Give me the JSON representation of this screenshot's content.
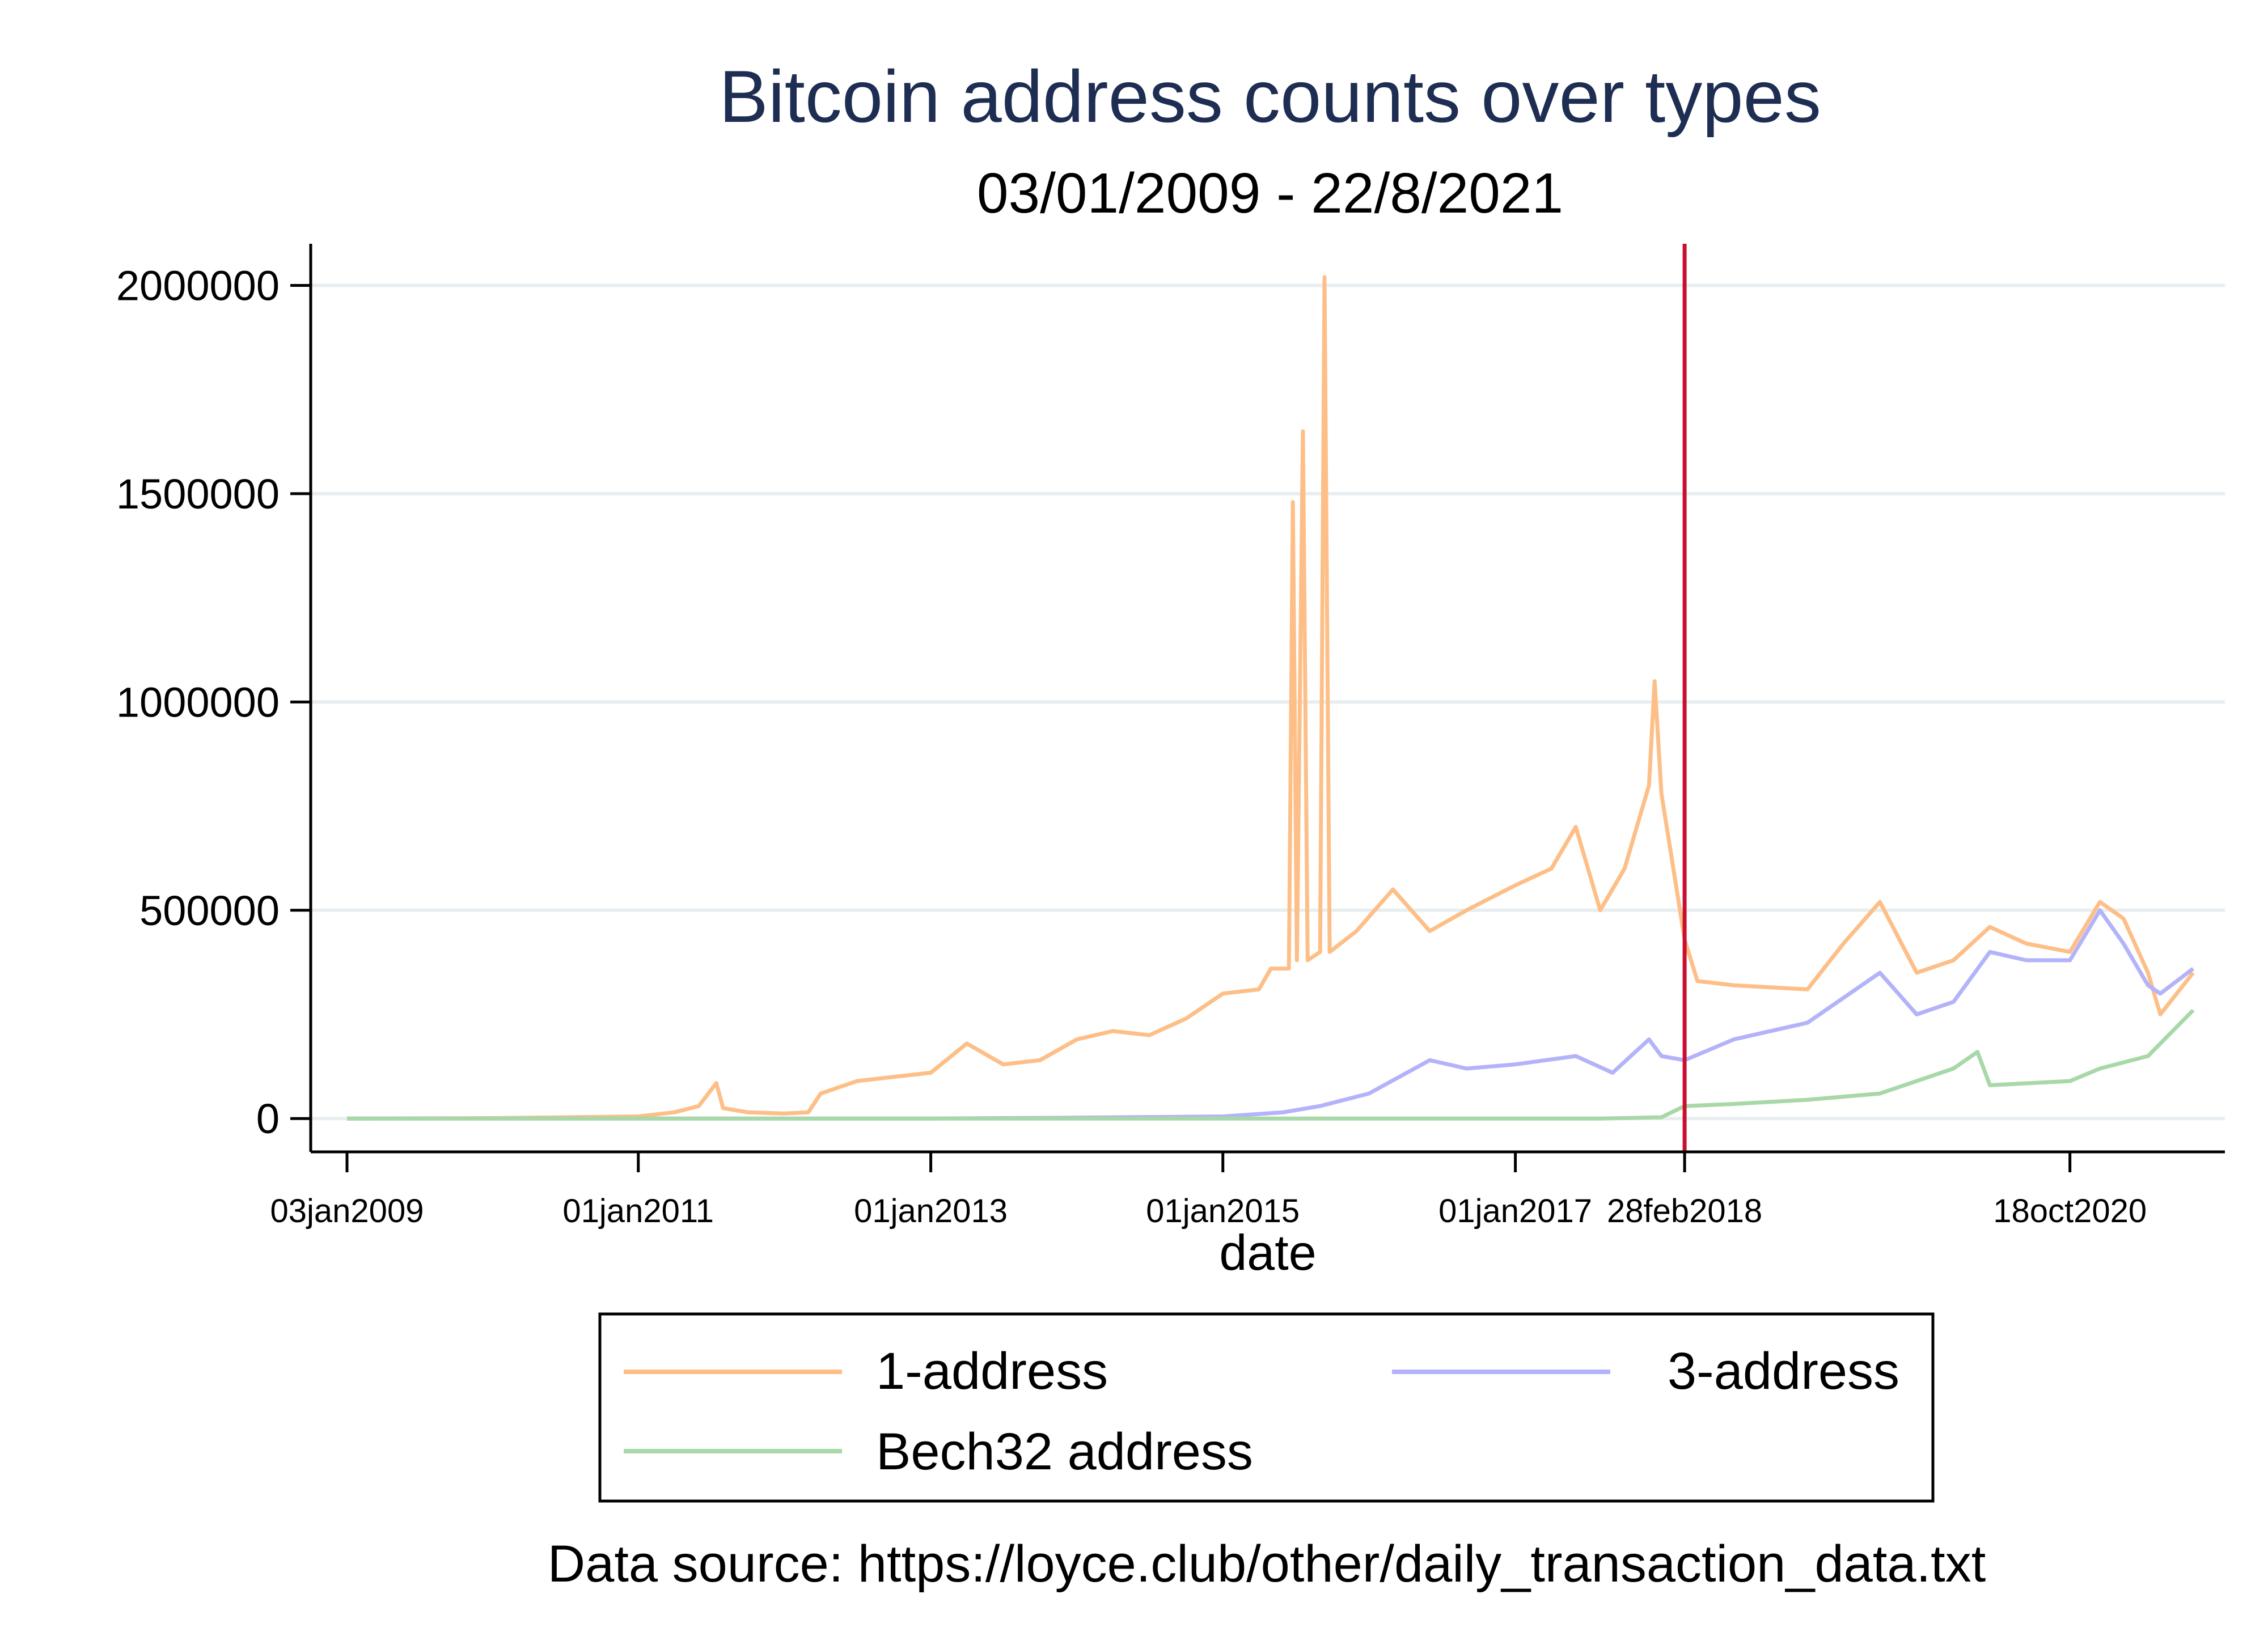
{
  "chart_data": {
    "type": "line",
    "title": "Bitcoin address counts over types",
    "subtitle": "03/01/2009 - 22/8/2021",
    "xlabel": "date",
    "ylabel": "",
    "xlim": [
      "2009-01-03",
      "2021-08-22"
    ],
    "ylim": [
      -80000,
      2100000
    ],
    "y_ticks": [
      {
        "value": 0,
        "label": "0"
      },
      {
        "value": 500000,
        "label": "500000"
      },
      {
        "value": 1000000,
        "label": "1000000"
      },
      {
        "value": 1500000,
        "label": "1500000"
      },
      {
        "value": 2000000,
        "label": "2000000"
      }
    ],
    "x_ticks": [
      {
        "value": "2009-01-03",
        "label": "03jan2009"
      },
      {
        "value": "2011-01-01",
        "label": "01jan2011"
      },
      {
        "value": "2013-01-01",
        "label": "01jan2013"
      },
      {
        "value": "2015-01-01",
        "label": "01jan2015"
      },
      {
        "value": "2017-01-01",
        "label": "01jan2017"
      },
      {
        "value": "2018-02-28",
        "label": "28feb2018"
      },
      {
        "value": "2020-10-18",
        "label": "18oct2020"
      }
    ],
    "grid": true,
    "reference_line": {
      "x": "2018-02-28",
      "color": "#c8102e"
    },
    "legend": {
      "position": "bottom",
      "columns": 2
    },
    "series": [
      {
        "name": "1-address",
        "color": "#fdbf87",
        "points": [
          [
            "2009-01-03",
            0
          ],
          [
            "2010-01-01",
            1000
          ],
          [
            "2010-07-01",
            3000
          ],
          [
            "2011-01-01",
            5000
          ],
          [
            "2011-04-01",
            15000
          ],
          [
            "2011-06-01",
            30000
          ],
          [
            "2011-07-15",
            85000
          ],
          [
            "2011-08-01",
            25000
          ],
          [
            "2011-10-01",
            15000
          ],
          [
            "2012-01-01",
            12000
          ],
          [
            "2012-03-01",
            15000
          ],
          [
            "2012-04-01",
            60000
          ],
          [
            "2012-07-01",
            90000
          ],
          [
            "2012-10-01",
            100000
          ],
          [
            "2013-01-01",
            110000
          ],
          [
            "2013-04-01",
            180000
          ],
          [
            "2013-07-01",
            130000
          ],
          [
            "2013-10-01",
            140000
          ],
          [
            "2014-01-01",
            190000
          ],
          [
            "2014-04-01",
            210000
          ],
          [
            "2014-07-01",
            200000
          ],
          [
            "2014-10-01",
            240000
          ],
          [
            "2015-01-01",
            300000
          ],
          [
            "2015-04-01",
            310000
          ],
          [
            "2015-05-01",
            360000
          ],
          [
            "2015-06-15",
            360000
          ],
          [
            "2015-06-25",
            1480000
          ],
          [
            "2015-07-05",
            380000
          ],
          [
            "2015-07-20",
            1650000
          ],
          [
            "2015-08-01",
            380000
          ],
          [
            "2015-09-01",
            400000
          ],
          [
            "2015-09-12",
            2020000
          ],
          [
            "2015-09-25",
            400000
          ],
          [
            "2015-12-01",
            450000
          ],
          [
            "2016-03-01",
            550000
          ],
          [
            "2016-06-01",
            450000
          ],
          [
            "2016-09-01",
            500000
          ],
          [
            "2017-01-01",
            560000
          ],
          [
            "2017-04-01",
            600000
          ],
          [
            "2017-06-01",
            700000
          ],
          [
            "2017-08-01",
            500000
          ],
          [
            "2017-10-01",
            600000
          ],
          [
            "2017-12-01",
            800000
          ],
          [
            "2017-12-15",
            1050000
          ],
          [
            "2018-01-01",
            780000
          ],
          [
            "2018-02-28",
            430000
          ],
          [
            "2018-04-01",
            330000
          ],
          [
            "2018-07-01",
            320000
          ],
          [
            "2019-01-01",
            310000
          ],
          [
            "2019-04-01",
            420000
          ],
          [
            "2019-07-01",
            520000
          ],
          [
            "2019-10-01",
            350000
          ],
          [
            "2020-01-01",
            380000
          ],
          [
            "2020-04-01",
            460000
          ],
          [
            "2020-07-01",
            420000
          ],
          [
            "2020-10-18",
            400000
          ],
          [
            "2021-01-01",
            520000
          ],
          [
            "2021-03-01",
            480000
          ],
          [
            "2021-05-01",
            350000
          ],
          [
            "2021-06-01",
            250000
          ],
          [
            "2021-08-22",
            350000
          ]
        ]
      },
      {
        "name": "3-address",
        "color": "#b3b3fa",
        "points": [
          [
            "2009-01-03",
            0
          ],
          [
            "2012-01-01",
            0
          ],
          [
            "2013-01-01",
            0
          ],
          [
            "2014-01-01",
            2000
          ],
          [
            "2015-01-01",
            5000
          ],
          [
            "2015-06-01",
            15000
          ],
          [
            "2015-09-01",
            30000
          ],
          [
            "2016-01-01",
            60000
          ],
          [
            "2016-06-01",
            140000
          ],
          [
            "2016-09-01",
            120000
          ],
          [
            "2017-01-01",
            130000
          ],
          [
            "2017-06-01",
            150000
          ],
          [
            "2017-09-01",
            110000
          ],
          [
            "2017-12-01",
            190000
          ],
          [
            "2018-01-01",
            150000
          ],
          [
            "2018-02-28",
            140000
          ],
          [
            "2018-07-01",
            190000
          ],
          [
            "2019-01-01",
            230000
          ],
          [
            "2019-07-01",
            350000
          ],
          [
            "2019-10-01",
            250000
          ],
          [
            "2020-01-01",
            280000
          ],
          [
            "2020-04-01",
            400000
          ],
          [
            "2020-07-01",
            380000
          ],
          [
            "2020-10-18",
            380000
          ],
          [
            "2021-01-01",
            500000
          ],
          [
            "2021-03-01",
            420000
          ],
          [
            "2021-05-01",
            320000
          ],
          [
            "2021-06-01",
            300000
          ],
          [
            "2021-08-22",
            360000
          ]
        ]
      },
      {
        "name": "Bech32 address",
        "color": "#a8d8a8",
        "points": [
          [
            "2009-01-03",
            0
          ],
          [
            "2017-08-01",
            0
          ],
          [
            "2018-01-01",
            3000
          ],
          [
            "2018-02-28",
            30000
          ],
          [
            "2018-07-01",
            35000
          ],
          [
            "2019-01-01",
            45000
          ],
          [
            "2019-07-01",
            60000
          ],
          [
            "2020-01-01",
            120000
          ],
          [
            "2020-03-01",
            160000
          ],
          [
            "2020-04-01",
            80000
          ],
          [
            "2020-10-18",
            90000
          ],
          [
            "2021-01-01",
            120000
          ],
          [
            "2021-05-01",
            150000
          ],
          [
            "2021-08-22",
            260000
          ]
        ]
      }
    ],
    "source_note": "Data source: https://loyce.club/other/daily_transaction_data.txt"
  }
}
